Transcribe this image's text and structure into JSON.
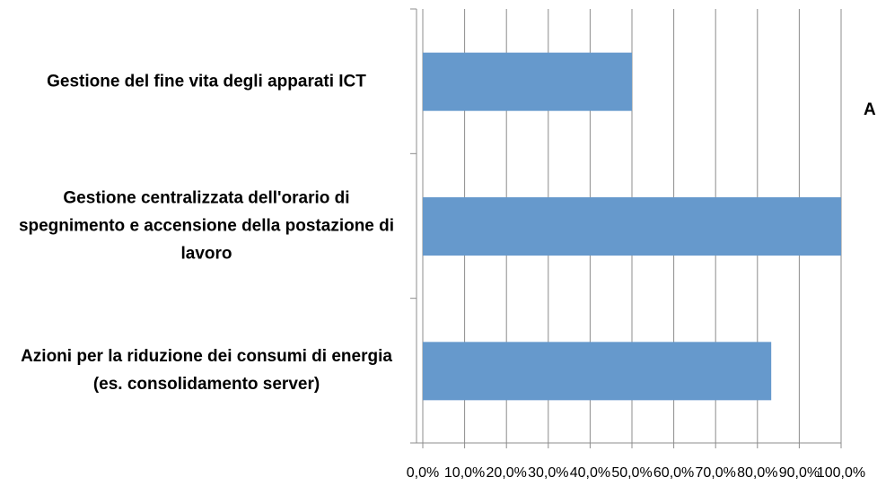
{
  "chart_data": {
    "type": "bar",
    "orientation": "horizontal",
    "categories": [
      "Gestione del fine vita degli apparati ICT",
      "Gestione centralizzata dell'orario di spegnimento e accensione della postazione di lavoro",
      "Azioni per la riduzione dei consumi di energia (es. consolidamento server)"
    ],
    "values": [
      50,
      100,
      83.3
    ],
    "color": "#6699cc",
    "xlim": [
      0,
      100
    ],
    "xticks": [
      {
        "value": 0,
        "label": "0,0%"
      },
      {
        "value": 10,
        "label": "10,0%"
      },
      {
        "value": 20,
        "label": "20,0%"
      },
      {
        "value": 30,
        "label": "30,0%"
      },
      {
        "value": 40,
        "label": "40,0%"
      },
      {
        "value": 50,
        "label": "50,0%"
      },
      {
        "value": 60,
        "label": "60,0%"
      },
      {
        "value": 70,
        "label": "70,0%"
      },
      {
        "value": 80,
        "label": "80,0%"
      },
      {
        "value": 90,
        "label": "90,0%"
      },
      {
        "value": 100,
        "label": "100,0%"
      }
    ],
    "grid": true,
    "annotation": "A"
  }
}
